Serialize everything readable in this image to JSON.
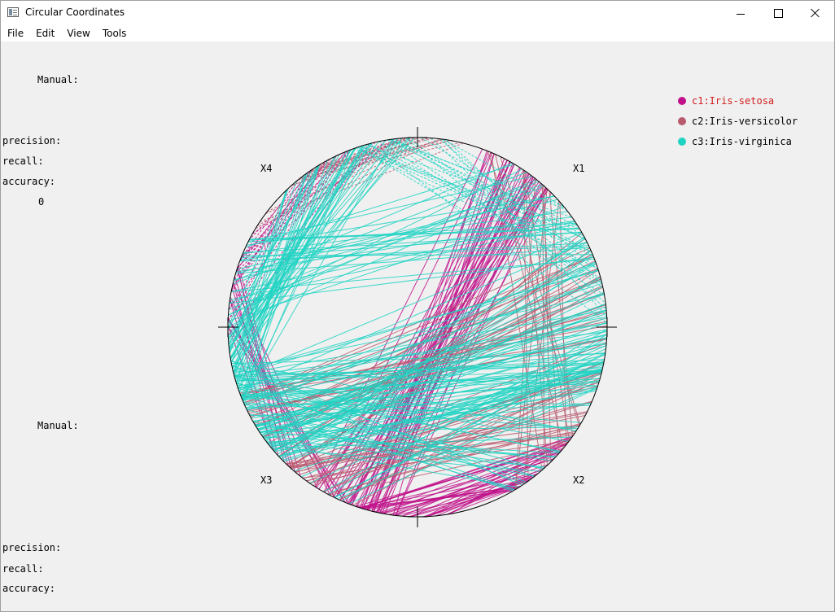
{
  "window": {
    "title": "Circular Coordinates"
  },
  "menu": [
    "File",
    "Edit",
    "View",
    "Tools"
  ],
  "panel_top": {
    "manual_label": "Manual:",
    "precision_label": "precision:",
    "recall_label": "recall:",
    "accuracy_label": "accuracy:",
    "accuracy_value": "0"
  },
  "panel_bottom": {
    "manual_label": "Manual:",
    "precision_label": "precision:",
    "recall_label": "recall:",
    "accuracy_label": "accuracy:"
  },
  "legend": [
    {
      "label": "c1:Iris-setosa",
      "color": "#c0108a",
      "text_color": "#d21e1e"
    },
    {
      "label": "c2:Iris-versicolor",
      "color": "#b85a6e",
      "text_color": "#000000"
    },
    {
      "label": "c3:Iris-virginica",
      "color": "#1fd3c3",
      "text_color": "#000000"
    }
  ],
  "axes": [
    "X1",
    "X2",
    "X3",
    "X4"
  ],
  "colors": {
    "setosa": "#c0108a",
    "versicolor": "#b85a6e",
    "virginica": "#1fd3c3"
  }
}
